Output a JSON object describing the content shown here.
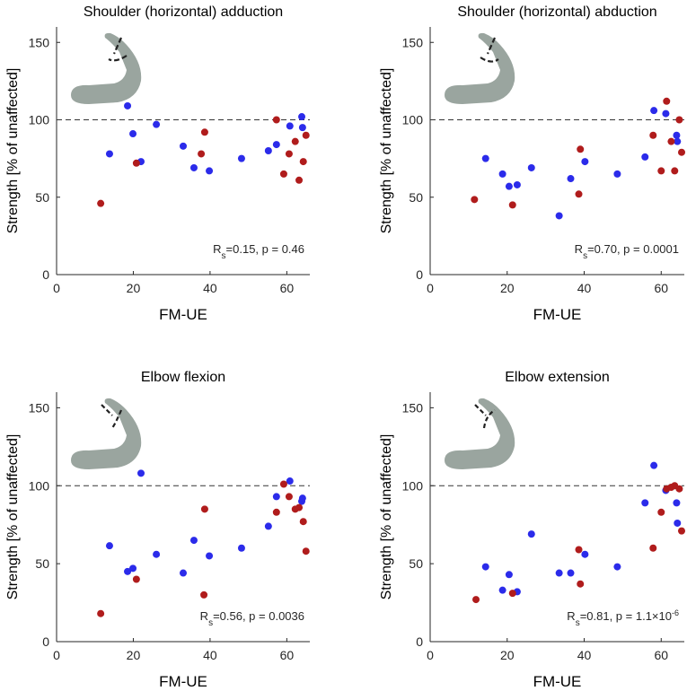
{
  "chart_data": [
    {
      "type": "scatter",
      "title": "Shoulder (horizontal) adduction",
      "xlabel": "FM-UE",
      "ylabel": "Strength [% of unaffected]",
      "xlim": [
        0,
        66
      ],
      "xticks": [
        0,
        20,
        40,
        60
      ],
      "ylim": [
        0,
        160
      ],
      "yticks": [
        0,
        50,
        100,
        150
      ],
      "reference_line": 100,
      "annotation": [
        {
          "text": "R"
        },
        {
          "text": "s",
          "sub": true
        },
        {
          "text": "=0.15, p = 0.46"
        }
      ],
      "series": [
        {
          "color": "#2b2bea",
          "x": [
            13.8,
            18.5,
            19.9,
            22,
            26,
            33,
            35.8,
            39.8,
            48.2,
            55.2,
            57.3,
            60.8,
            63.9,
            64.1
          ],
          "values": [
            78,
            109,
            91,
            73,
            97,
            83,
            69,
            67,
            75,
            80,
            84,
            96,
            102,
            95
          ]
        },
        {
          "color": "#b01c1c",
          "x": [
            11.5,
            20.8,
            37.7,
            38.6,
            57.3,
            59.2,
            60.6,
            62.2,
            63.2,
            64.3,
            65
          ],
          "values": [
            46,
            72,
            78,
            92,
            100,
            65,
            78,
            86,
            61,
            73,
            90
          ]
        }
      ]
    },
    {
      "type": "scatter",
      "title": "Shoulder (horizontal) abduction",
      "xlabel": "FM-UE",
      "ylabel": "Strength [% of unaffected]",
      "xlim": [
        0,
        66
      ],
      "xticks": [
        0,
        20,
        40,
        60
      ],
      "ylim": [
        0,
        160
      ],
      "yticks": [
        0,
        50,
        100,
        150
      ],
      "reference_line": 100,
      "annotation": [
        {
          "text": "R"
        },
        {
          "text": "s",
          "sub": true
        },
        {
          "text": "=0.70, p = 0.0001"
        }
      ],
      "series": [
        {
          "color": "#2b2bea",
          "x": [
            14.4,
            18.8,
            20.5,
            22.6,
            26.3,
            33.5,
            36.5,
            40.2,
            48.6,
            55.8,
            58.1,
            61.2,
            64,
            64.2
          ],
          "values": [
            75,
            65,
            57,
            58,
            69,
            38,
            62,
            73,
            65,
            76,
            106,
            104,
            90,
            86
          ]
        },
        {
          "color": "#b01c1c",
          "x": [
            11.5,
            21.4,
            38.6,
            39,
            57.9,
            60,
            61.4,
            62.6,
            63.5,
            64.7,
            65.3
          ],
          "values": [
            48.5,
            45,
            52,
            81,
            90,
            67,
            112,
            86,
            67,
            100,
            79
          ]
        }
      ]
    },
    {
      "type": "scatter",
      "title": "Elbow flexion",
      "xlabel": "FM-UE",
      "ylabel": "Strength [% of unaffected]",
      "xlim": [
        0,
        66
      ],
      "xticks": [
        0,
        20,
        40,
        60
      ],
      "ylim": [
        0,
        160
      ],
      "yticks": [
        0,
        50,
        100,
        150
      ],
      "reference_line": 100,
      "annotation": [
        {
          "text": "R"
        },
        {
          "text": "s",
          "sub": true
        },
        {
          "text": "=0.56, p = 0.0036"
        }
      ],
      "series": [
        {
          "color": "#2b2bea",
          "x": [
            13.8,
            18.5,
            19.9,
            22,
            26,
            33,
            35.8,
            39.8,
            48.2,
            55.2,
            57.3,
            60.8,
            63.9,
            64.1
          ],
          "values": [
            61.5,
            45,
            47,
            108,
            56,
            44,
            65,
            55,
            60,
            74,
            93,
            103,
            90,
            92
          ]
        },
        {
          "color": "#b01c1c",
          "x": [
            11.5,
            20.8,
            38.6,
            38.4,
            57.3,
            59.2,
            60.6,
            62.2,
            63.2,
            64.3,
            65
          ],
          "values": [
            18,
            40,
            85,
            30,
            83,
            101,
            93,
            85,
            86,
            77,
            58
          ]
        }
      ]
    },
    {
      "type": "scatter",
      "title": "Elbow extension",
      "xlabel": "FM-UE",
      "ylabel": "Strength [% of unaffected]",
      "xlim": [
        0,
        66
      ],
      "xticks": [
        0,
        20,
        40,
        60
      ],
      "ylim": [
        0,
        160
      ],
      "yticks": [
        0,
        50,
        100,
        150
      ],
      "reference_line": 100,
      "annotation": [
        {
          "text": "R"
        },
        {
          "text": "s",
          "sub": true
        },
        {
          "text": "=0.81, p = 1.1×10"
        },
        {
          "text": "-6",
          "sup": true
        }
      ],
      "series": [
        {
          "color": "#2b2bea",
          "x": [
            14.4,
            18.8,
            20.5,
            22.6,
            26.3,
            33.5,
            36.5,
            40.2,
            48.6,
            55.8,
            58.1,
            61.2,
            64,
            64.2
          ],
          "values": [
            48,
            33,
            43,
            32,
            69,
            44,
            44,
            56,
            48,
            89,
            113,
            97,
            89,
            76
          ]
        },
        {
          "color": "#b01c1c",
          "x": [
            11.9,
            21.4,
            38.6,
            39,
            57.9,
            60,
            61.4,
            62.6,
            63.5,
            64.7,
            65.3
          ],
          "values": [
            27,
            31,
            59,
            37,
            60,
            83,
            98,
            99,
            100,
            98,
            71
          ]
        }
      ]
    }
  ]
}
